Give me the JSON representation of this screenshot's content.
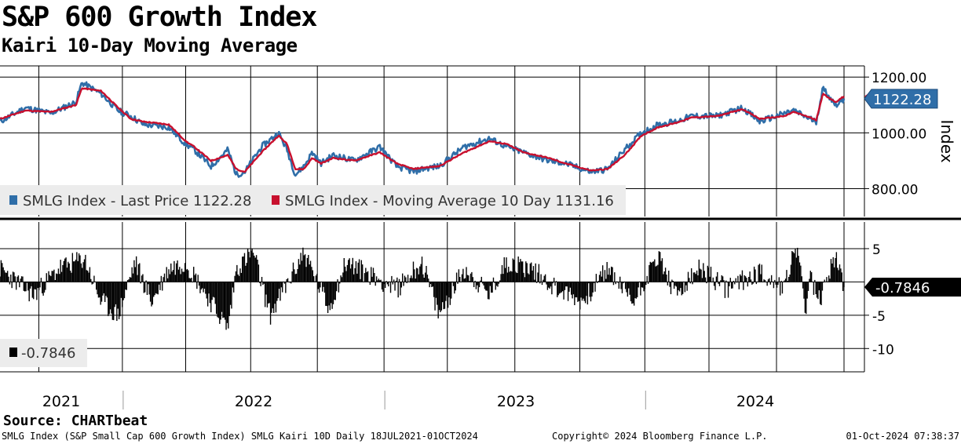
{
  "title": "S&P 600 Growth Index",
  "subtitle": "Kairi 10-Day Moving Average",
  "source": "Source: CHARTbeat",
  "footer": {
    "left": "SMLG Index (S&P Small Cap 600 Growth Index) SMLG Kairi 10D  Daily 18JUL2021-01OCT2024",
    "center": "Copyright© 2024 Bloomberg Finance L.P.",
    "right": "01-Oct-2024 07:38:37"
  },
  "colors": {
    "price": "#2f6ea8",
    "ma": "#c8102e",
    "kairi": "#000000",
    "grid": "#000000"
  },
  "chart_data": [
    {
      "type": "line",
      "title": "S&P 600 Growth Index",
      "ylabel": "Index",
      "ylim": [
        700,
        1240
      ],
      "yticks": [
        "1200.00",
        "1000.00",
        "800.00"
      ],
      "ytick_values": [
        1200,
        1000,
        800
      ],
      "x_labels": [
        "2021",
        "2022",
        "2023",
        "2024"
      ],
      "legend": {
        "price": "SMLG Index - Last Price 1122.28",
        "ma": "SMLG Index - Moving Average 10 Day 1131.16"
      },
      "last_price_label": "1122.28",
      "last_price": 1122.28,
      "last_ma": 1131.16,
      "keyframes_t": [
        0,
        0.03,
        0.06,
        0.09,
        0.097,
        0.12,
        0.14,
        0.155,
        0.17,
        0.2,
        0.22,
        0.23,
        0.25,
        0.27,
        0.28,
        0.29,
        0.31,
        0.33,
        0.34,
        0.35,
        0.36,
        0.37,
        0.38,
        0.395,
        0.42,
        0.45,
        0.47,
        0.49,
        0.5,
        0.52,
        0.55,
        0.58,
        0.6,
        0.62,
        0.65,
        0.67,
        0.7,
        0.72,
        0.74,
        0.76,
        0.78,
        0.8,
        0.82,
        0.85,
        0.88,
        0.9,
        0.93,
        0.94,
        0.96,
        0.967,
        0.975,
        0.99,
        1.0
      ],
      "series": [
        {
          "name": "SMLG Index - Last Price",
          "values": [
            1040,
            1090,
            1070,
            1110,
            1180,
            1140,
            1080,
            1060,
            1030,
            1020,
            960,
            940,
            880,
            940,
            850,
            860,
            950,
            1000,
            940,
            850,
            880,
            930,
            890,
            920,
            900,
            950,
            880,
            860,
            870,
            880,
            950,
            980,
            950,
            930,
            900,
            890,
            860,
            870,
            940,
            1000,
            1030,
            1040,
            1060,
            1060,
            1090,
            1040,
            1070,
            1080,
            1050,
            1040,
            1160,
            1100,
            1122
          ]
        },
        {
          "name": "SMLG Index - Moving Average 10 Day",
          "values": [
            1050,
            1080,
            1075,
            1100,
            1160,
            1150,
            1090,
            1050,
            1040,
            1030,
            970,
            950,
            900,
            920,
            870,
            860,
            930,
            990,
            960,
            870,
            870,
            910,
            890,
            910,
            900,
            930,
            890,
            870,
            875,
            880,
            930,
            970,
            960,
            930,
            910,
            890,
            865,
            870,
            920,
            990,
            1020,
            1035,
            1055,
            1060,
            1085,
            1050,
            1060,
            1075,
            1055,
            1045,
            1140,
            1110,
            1131
          ]
        }
      ]
    },
    {
      "type": "bar",
      "title": "Kairi 10-Day",
      "ylim": [
        -13.5,
        9
      ],
      "yticks": [
        "5",
        "-5",
        "-10"
      ],
      "ytick_values": [
        5,
        -5,
        -10
      ],
      "last_value_label": "-0.7846",
      "last_value": -0.7846,
      "legend": "-0.7846",
      "keyframes_t": [
        0,
        0.04,
        0.07,
        0.1,
        0.12,
        0.14,
        0.16,
        0.18,
        0.2,
        0.22,
        0.25,
        0.27,
        0.28,
        0.3,
        0.32,
        0.35,
        0.36,
        0.39,
        0.41,
        0.44,
        0.47,
        0.5,
        0.52,
        0.55,
        0.58,
        0.6,
        0.63,
        0.66,
        0.69,
        0.72,
        0.75,
        0.78,
        0.8,
        0.83,
        0.86,
        0.9,
        0.93,
        0.94,
        0.95,
        0.955,
        0.96,
        0.97,
        0.99,
        1.0
      ],
      "values": [
        2,
        -2,
        2,
        3.5,
        -3,
        -5,
        3,
        -3,
        2,
        3,
        -3,
        -7,
        2,
        4.5,
        -5,
        2,
        4.5,
        -4,
        3,
        1,
        -1,
        3,
        -5,
        2,
        -2,
        3,
        2,
        -1,
        -3,
        2,
        -3,
        4,
        -2,
        2,
        -1,
        1.5,
        -1,
        5,
        2,
        -6,
        1,
        -3,
        4,
        -0.78
      ]
    }
  ]
}
